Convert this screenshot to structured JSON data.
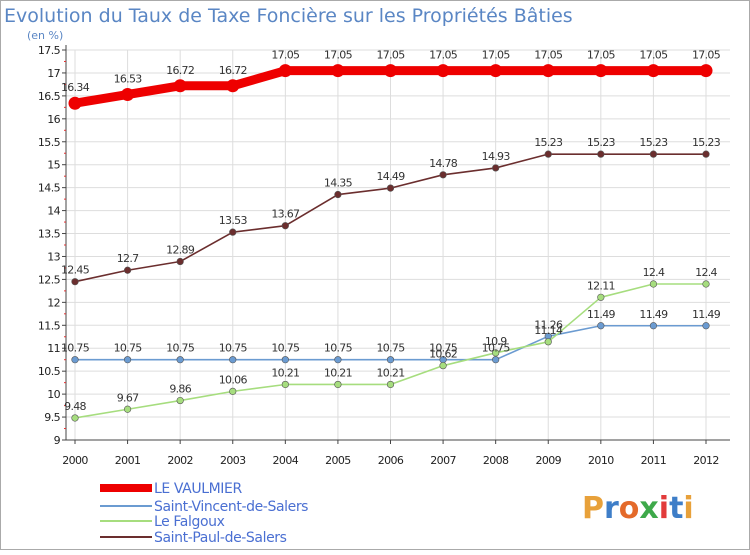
{
  "colors": {
    "frame": "#aaaaaa",
    "grid": "#dddddd",
    "title": "#5a86c4",
    "legend_text": "#4a6fd2"
  },
  "logo": {
    "text": "Proxiti"
  },
  "chart_data": {
    "type": "line",
    "title": "Evolution du Taux de Taxe Foncière sur les Propriétés Bâties",
    "subtitle": "(en %)",
    "xlabel": "",
    "ylabel": "",
    "x": [
      "2000",
      "2001",
      "2002",
      "2003",
      "2004",
      "2005",
      "2006",
      "2007",
      "2008",
      "2009",
      "2010",
      "2011",
      "2012"
    ],
    "ylim": [
      9,
      17.5
    ],
    "yticks": [
      9,
      9.5,
      10,
      10.5,
      11,
      11.5,
      12,
      12.5,
      13,
      13.5,
      14,
      14.5,
      15,
      15.5,
      16,
      16.5,
      17,
      17.5
    ],
    "grid": true,
    "legend_position": "bottom-left",
    "series": [
      {
        "name": "LE VAULMIER",
        "color": "#ee0000",
        "values": [
          16.34,
          16.53,
          16.72,
          16.72,
          17.05,
          17.05,
          17.05,
          17.05,
          17.05,
          17.05,
          17.05,
          17.05,
          17.05
        ],
        "labels": [
          "16.34",
          "16.53",
          "16.72",
          "16.72",
          "17.05",
          "17.05",
          "17.05",
          "17.05",
          "17.05",
          "17.05",
          "17.05",
          "17.05",
          "17.05"
        ]
      },
      {
        "name": "Saint-Vincent-de-Salers",
        "color": "#6b9bd1",
        "values": [
          10.75,
          10.75,
          10.75,
          10.75,
          10.75,
          10.75,
          10.75,
          10.75,
          10.75,
          11.26,
          11.49,
          11.49,
          11.49
        ],
        "labels": [
          "10.75",
          "10.75",
          "10.75",
          "10.75",
          "10.75",
          "10.75",
          "10.75",
          "10.75",
          "10.75",
          "11.26",
          "11.49",
          "11.49",
          "11.49"
        ]
      },
      {
        "name": "Le Falgoux",
        "color": "#a6dd7e",
        "values": [
          9.48,
          9.67,
          9.86,
          10.06,
          10.21,
          10.21,
          10.21,
          10.62,
          10.9,
          11.14,
          12.11,
          12.4,
          12.4
        ],
        "labels": [
          "9.48",
          "9.67",
          "9.86",
          "10.06",
          "10.21",
          "10.21",
          "10.21",
          "10.62",
          "10.9",
          "11.14",
          "12.11",
          "12.4",
          "12.4"
        ]
      },
      {
        "name": "Saint-Paul-de-Salers",
        "color": "#6b2e2e",
        "values": [
          12.45,
          12.7,
          12.89,
          13.53,
          13.67,
          14.35,
          14.49,
          14.78,
          14.93,
          15.23,
          15.23,
          15.23,
          15.23
        ],
        "labels": [
          "12.45",
          "12.7",
          "12.89",
          "13.53",
          "13.67",
          "14.35",
          "14.49",
          "14.78",
          "14.93",
          "15.23",
          "15.23",
          "15.23",
          "15.23"
        ]
      }
    ]
  }
}
